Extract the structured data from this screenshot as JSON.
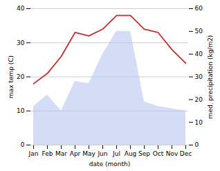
{
  "chart_data": {
    "type": "line",
    "categories": [
      "Jan",
      "Feb",
      "Mar",
      "Apr",
      "May",
      "Jun",
      "Jul",
      "Aug",
      "Sep",
      "Oct",
      "Nov",
      "Dec"
    ],
    "series": [
      {
        "type": "area",
        "axis": "y2",
        "color": "#b8c4f0",
        "values": [
          17,
          22,
          15,
          28,
          27,
          40,
          50,
          50,
          19,
          17,
          16,
          15
        ]
      },
      {
        "type": "line",
        "color": "#c03030",
        "values": [
          18,
          21,
          26,
          33,
          32,
          34,
          38,
          38,
          34,
          33,
          28,
          24
        ]
      }
    ],
    "xlabel": "date (month)",
    "ylabel": "max temp (C)",
    "y2label": "med. precipitation (kg/m2)",
    "ylim": [
      0,
      40
    ],
    "yticks": [
      0,
      10,
      20,
      30,
      40
    ],
    "y2lim": [
      0,
      60
    ],
    "y2ticks": [
      0,
      10,
      20,
      30,
      40,
      50,
      60
    ],
    "grid": true
  }
}
